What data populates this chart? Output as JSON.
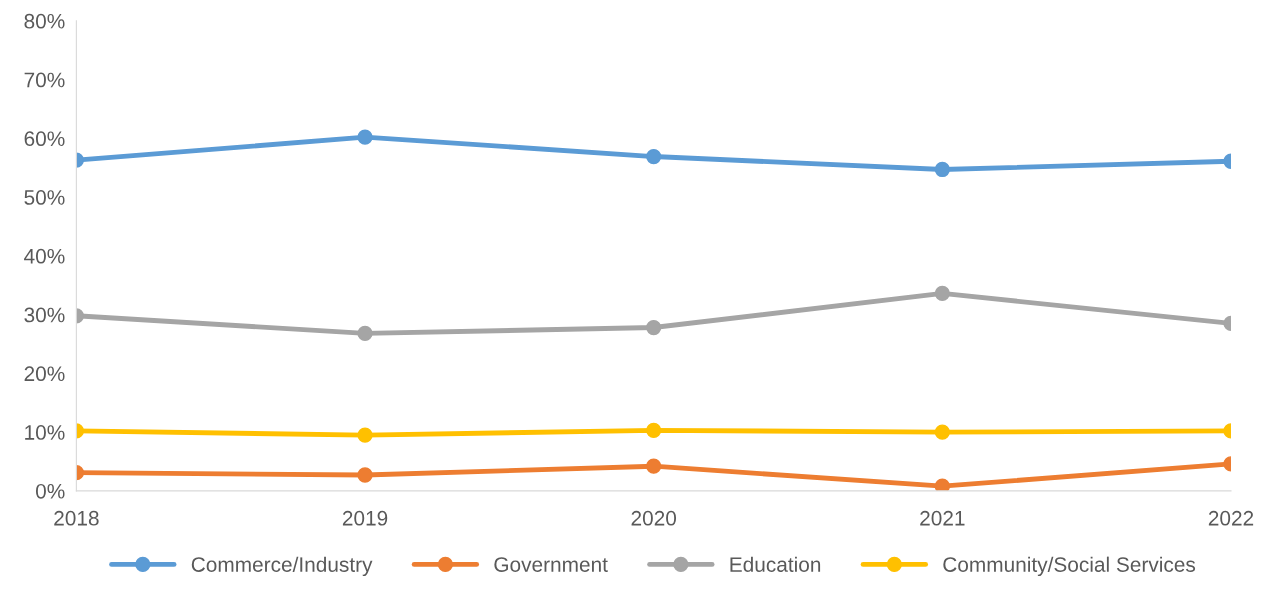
{
  "chart_data": {
    "type": "line",
    "categories": [
      "2018",
      "2019",
      "2020",
      "2021",
      "2022"
    ],
    "series": [
      {
        "name": "Commerce/Industry",
        "color": "#5b9bd5",
        "values": [
          56.3,
          60.2,
          56.9,
          54.7,
          56.1
        ]
      },
      {
        "name": "Government",
        "color": "#ed7d31",
        "values": [
          3.1,
          2.7,
          4.2,
          0.8,
          4.6
        ]
      },
      {
        "name": "Education",
        "color": "#a5a5a5",
        "values": [
          29.8,
          26.8,
          27.8,
          33.6,
          28.5
        ]
      },
      {
        "name": "Community/Social Services",
        "color": "#ffc000",
        "values": [
          10.2,
          9.5,
          10.3,
          10.0,
          10.2
        ]
      }
    ],
    "ylim": [
      0,
      80
    ],
    "yticks": [
      {
        "value": 0,
        "label": "0%"
      },
      {
        "value": 10,
        "label": "10%"
      },
      {
        "value": 20,
        "label": "20%"
      },
      {
        "value": 30,
        "label": "30%"
      },
      {
        "value": 40,
        "label": "40%"
      },
      {
        "value": 50,
        "label": "50%"
      },
      {
        "value": 60,
        "label": "60%"
      },
      {
        "value": 70,
        "label": "70%"
      },
      {
        "value": 80,
        "label": "80%"
      }
    ],
    "grid": false,
    "legend": "bottom",
    "marker": "circle",
    "line_style": "solid"
  }
}
